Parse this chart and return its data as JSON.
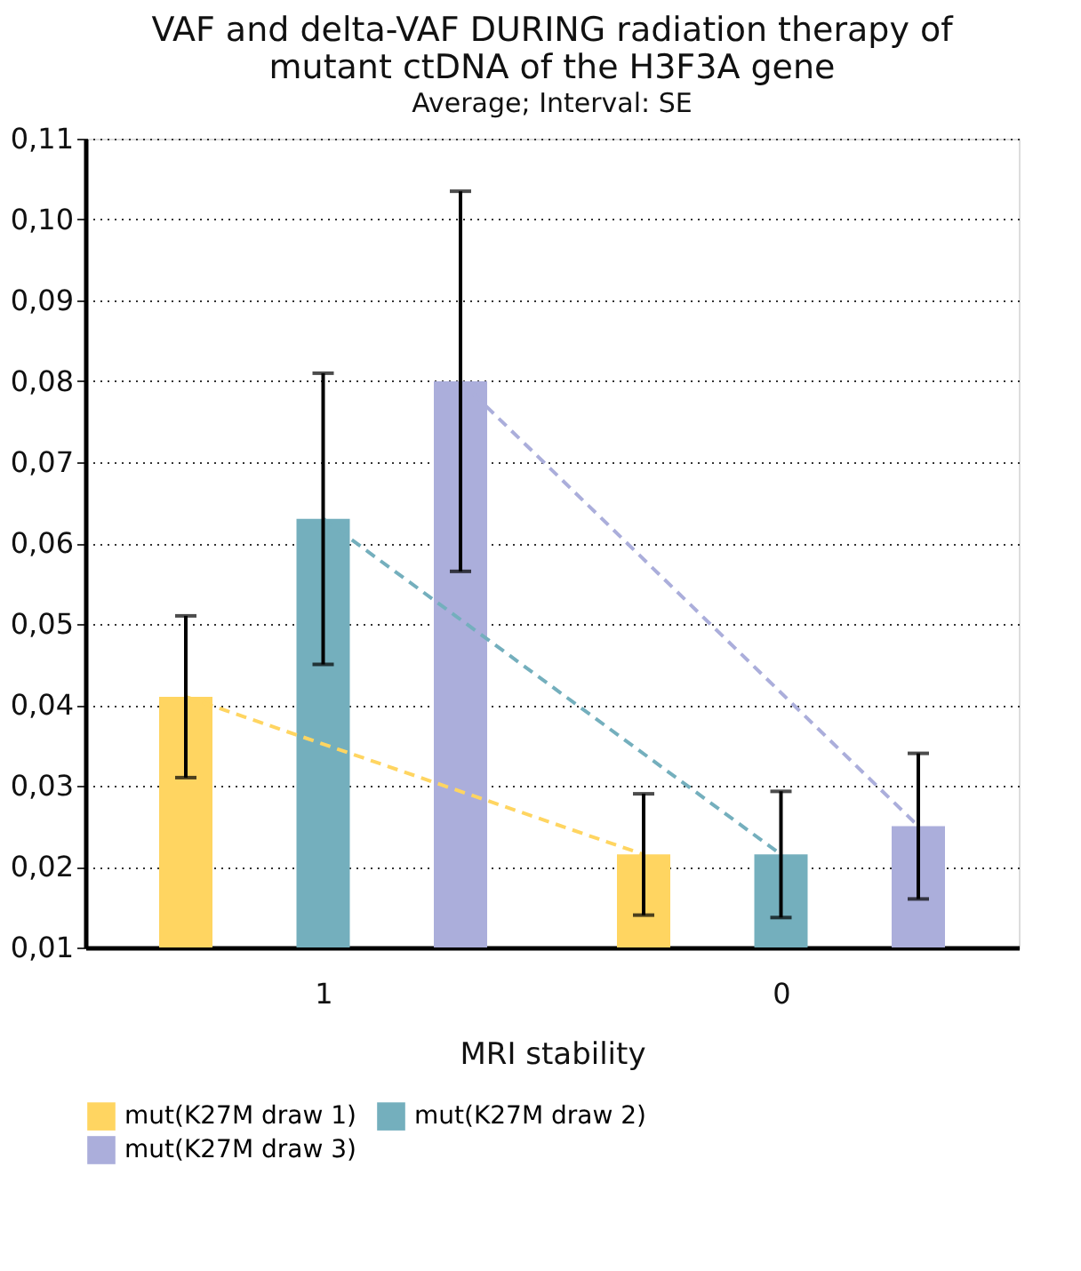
{
  "chart_data": {
    "type": "bar",
    "title": [
      "VAF and delta-VAF DURING radiation therapy of",
      "mutant ctDNA of the H3F3A gene"
    ],
    "subtitle": "Average; Interval: SE",
    "xlabel": "MRI stability",
    "categories": [
      "1",
      "0"
    ],
    "series": [
      {
        "name": "mut(K27M draw 1)",
        "color": "#ffd561",
        "values": [
          0.041,
          0.0215
        ],
        "errors": [
          0.01,
          0.0075
        ],
        "line_style": "dashed"
      },
      {
        "name": "mut(K27M draw 2)",
        "color": "#74afbd",
        "values": [
          0.063,
          0.0215
        ],
        "errors": [
          0.018,
          0.0078
        ],
        "line_style": "dashed"
      },
      {
        "name": "mut(K27M draw 3)",
        "color": "#abaedb",
        "values": [
          0.08,
          0.025
        ],
        "errors": [
          0.0235,
          0.009
        ],
        "line_style": "dashed"
      }
    ],
    "ylim": [
      0.01,
      0.11
    ],
    "yticks": [
      {
        "value": 0.01,
        "label": "0,01"
      },
      {
        "value": 0.02,
        "label": "0,02"
      },
      {
        "value": 0.03,
        "label": "0,03"
      },
      {
        "value": 0.04,
        "label": "0,04"
      },
      {
        "value": 0.05,
        "label": "0,05"
      },
      {
        "value": 0.06,
        "label": "0,06"
      },
      {
        "value": 0.07,
        "label": "0,07"
      },
      {
        "value": 0.08,
        "label": "0,08"
      },
      {
        "value": 0.09,
        "label": "0,09"
      },
      {
        "value": 0.1,
        "label": "0,10"
      },
      {
        "value": 0.11,
        "label": "0,11"
      }
    ],
    "grid": "y",
    "legend": "bottom"
  }
}
